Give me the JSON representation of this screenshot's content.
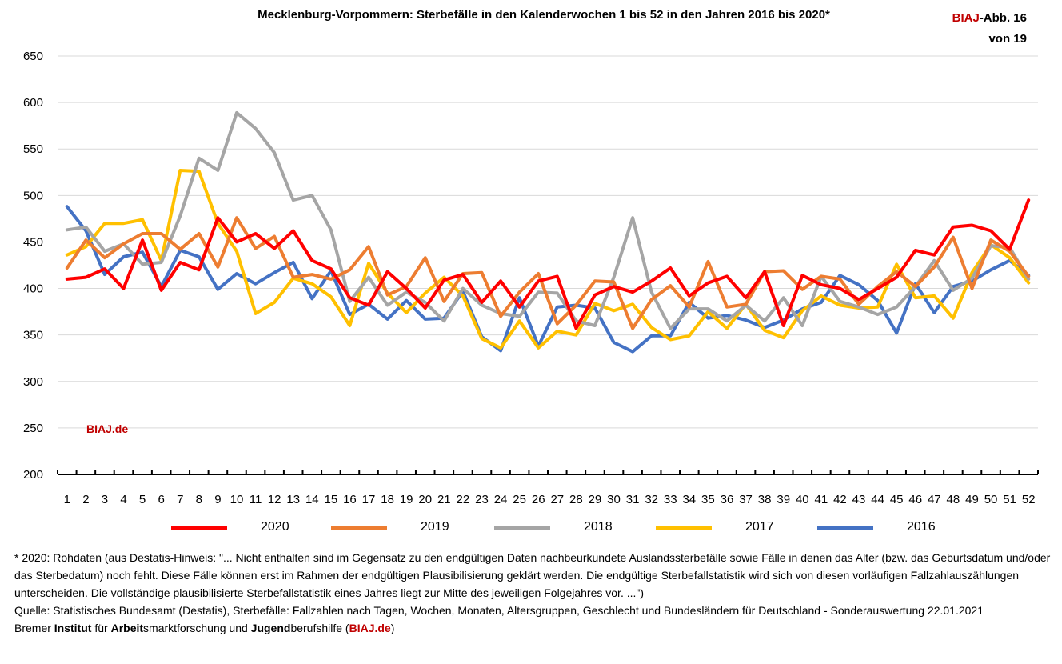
{
  "title": "Mecklenburg-Vorpommern: Sterbefälle in den Kalenderwochen 1 bis 52 in den Jahren 2016 bis 2020*",
  "badge": {
    "brand": "BIAJ",
    "rest": "-Abb. 16",
    "line2": "von 19"
  },
  "watermark": "BIAJ.de",
  "chart_data": {
    "type": "line",
    "title": "Mecklenburg-Vorpommern: Sterbefälle in den Kalenderwochen 1 bis 52 in den Jahren 2016 bis 2020*",
    "xlabel": "",
    "ylabel": "",
    "ylim": [
      200,
      650
    ],
    "yticks": [
      650,
      600,
      550,
      500,
      450,
      400,
      350,
      300,
      250,
      200
    ],
    "grid": true,
    "legend": "bottom",
    "categories": [
      "1",
      "2",
      "3",
      "4",
      "5",
      "6",
      "7",
      "8",
      "9",
      "10",
      "11",
      "12",
      "13",
      "14",
      "15",
      "16",
      "17",
      "18",
      "19",
      "20",
      "21",
      "22",
      "23",
      "24",
      "25",
      "26",
      "27",
      "28",
      "29",
      "30",
      "31",
      "32",
      "33",
      "34",
      "35",
      "36",
      "37",
      "38",
      "39",
      "40",
      "41",
      "42",
      "43",
      "44",
      "45",
      "46",
      "47",
      "48",
      "49",
      "50",
      "51",
      "52"
    ],
    "series": [
      {
        "name": "2020",
        "color": "#ff0000",
        "values": [
          410,
          412,
          421,
          400,
          452,
          398,
          428,
          420,
          476,
          450,
          459,
          443,
          462,
          430,
          421,
          390,
          382,
          418,
          400,
          379,
          409,
          415,
          385,
          408,
          380,
          408,
          413,
          357,
          393,
          402,
          396,
          408,
          422,
          392,
          406,
          413,
          390,
          418,
          360,
          414,
          404,
          400,
          388,
          400,
          412,
          441,
          436,
          466,
          468,
          462,
          442,
          495
        ]
      },
      {
        "name": "2019",
        "color": "#ed7d31",
        "values": [
          422,
          452,
          433,
          448,
          459,
          459,
          442,
          459,
          423,
          476,
          443,
          456,
          412,
          415,
          410,
          420,
          445,
          393,
          402,
          433,
          386,
          416,
          417,
          370,
          396,
          416,
          362,
          382,
          408,
          407,
          357,
          388,
          403,
          380,
          429,
          380,
          383,
          418,
          419,
          399,
          413,
          410,
          383,
          402,
          418,
          402,
          423,
          455,
          400,
          452,
          440,
          413
        ]
      },
      {
        "name": "2018",
        "color": "#a5a5a5",
        "values": [
          463,
          466,
          440,
          448,
          426,
          428,
          478,
          540,
          527,
          589,
          572,
          546,
          495,
          500,
          463,
          386,
          412,
          382,
          396,
          385,
          365,
          400,
          382,
          373,
          370,
          396,
          395,
          365,
          360,
          412,
          476,
          396,
          357,
          378,
          378,
          365,
          382,
          365,
          390,
          360,
          413,
          386,
          380,
          372,
          380,
          402,
          430,
          398,
          411,
          446,
          444,
          410
        ]
      },
      {
        "name": "2017",
        "color": "#ffc000",
        "values": [
          436,
          445,
          470,
          470,
          474,
          430,
          527,
          526,
          470,
          440,
          373,
          385,
          411,
          405,
          391,
          360,
          427,
          395,
          374,
          395,
          412,
          392,
          346,
          336,
          365,
          336,
          354,
          350,
          384,
          376,
          383,
          358,
          345,
          349,
          375,
          357,
          383,
          355,
          347,
          376,
          392,
          382,
          379,
          380,
          426,
          390,
          392,
          368,
          417,
          447,
          433,
          406
        ]
      },
      {
        "name": "2016",
        "color": "#4472c4",
        "values": [
          488,
          462,
          415,
          434,
          439,
          402,
          441,
          434,
          399,
          416,
          405,
          417,
          428,
          389,
          419,
          372,
          383,
          367,
          387,
          367,
          368,
          397,
          348,
          333,
          390,
          338,
          380,
          382,
          379,
          342,
          332,
          349,
          349,
          385,
          368,
          371,
          366,
          358,
          366,
          378,
          385,
          414,
          404,
          387,
          352,
          405,
          374,
          402,
          408,
          420,
          430,
          414
        ]
      }
    ]
  },
  "footnote": {
    "line1": "* 2020: Rohdaten (aus Destatis-Hinweis: \"... Nicht enthalten sind im Gegensatz zu den endgültigen Daten nachbeurkundete Auslandssterbefälle sowie Fälle in denen das Alter (bzw. das Geburtsdatum und/oder das Sterbedatum) noch fehlt. Diese Fälle können erst im Rahmen der endgültigen Plausibilisierung geklärt werden. Die endgültige Sterbefallstatistik wird sich von diesen vorläufigen Fallzahlauszählungen unterscheiden. Die vollständige plausibilisierte Sterbefallstatistik eines Jahres liegt zur Mitte des jeweiligen Folgejahres vor. ...\")",
    "line2": "Quelle: Statistisches Bundesamt (Destatis), Sterbefälle: Fallzahlen nach Tagen, Wochen, Monaten, Altersgruppen, Geschlecht und Bundesländern für Deutschland - Sonderauswertung 22.01.2021",
    "credit": {
      "p1": "Bremer ",
      "b1": "Institut",
      "p2": " für ",
      "b2": "Arbeit",
      "p3": "smarktforschung und ",
      "b3": "Jugend",
      "p4": "berufshilfe (",
      "brand": "BIAJ.de",
      "p5": ")"
    }
  }
}
